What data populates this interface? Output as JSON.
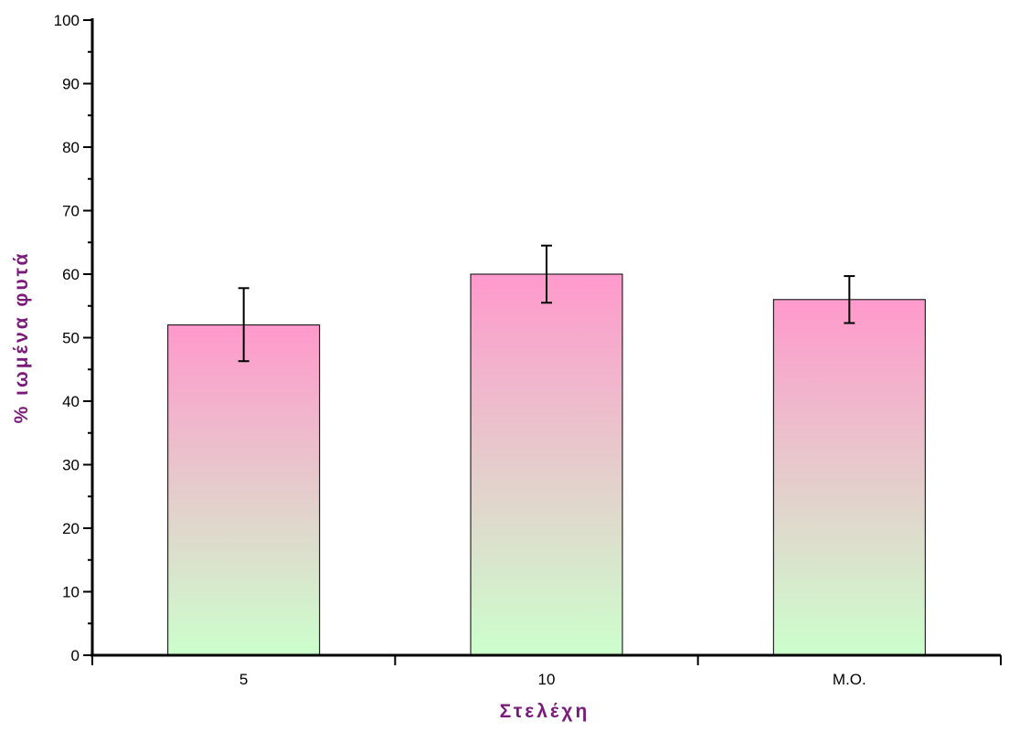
{
  "chart_data": {
    "type": "bar",
    "title": "",
    "xlabel": "Στελέχη",
    "ylabel": "% ιωμένα φυτά",
    "categories": [
      "5",
      "10",
      "M.O."
    ],
    "values": [
      52,
      60,
      56
    ],
    "error_low": [
      46.3,
      55.5,
      52.3
    ],
    "error_high": [
      57.8,
      64.5,
      59.7
    ],
    "ylim": [
      0,
      100
    ],
    "ymajor_step": 10,
    "yminor_step": 5,
    "yticks": [
      "0",
      "10",
      "20",
      "30",
      "40",
      "50",
      "60",
      "70",
      "80",
      "90",
      "100"
    ],
    "grid": false,
    "legend": "none",
    "colors": {
      "bar_top": "#ff99cc",
      "bar_bottom": "#ccffcc",
      "bar_stroke": "#000000",
      "axis_title": "#7a1a7a",
      "axis": "#000000"
    }
  }
}
